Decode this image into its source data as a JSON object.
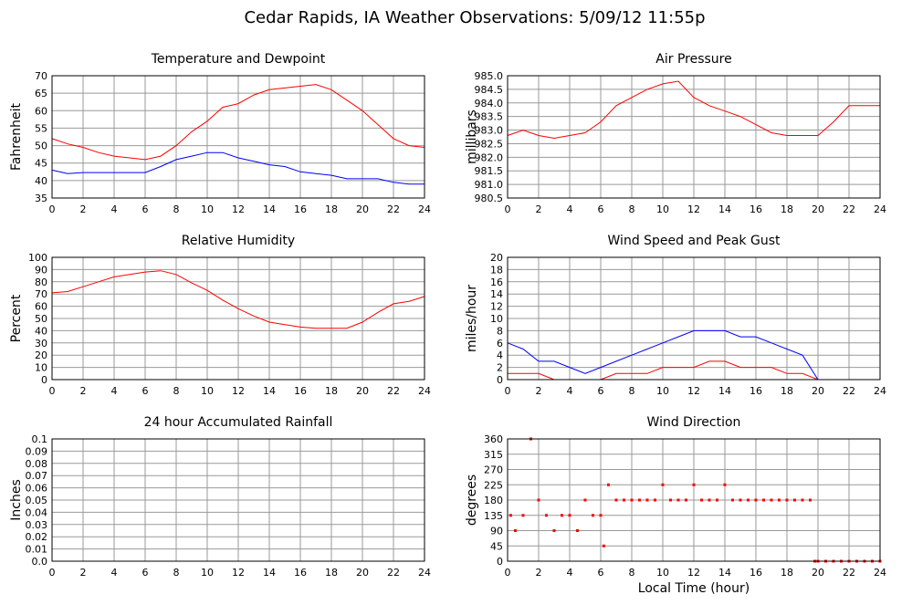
{
  "title": "Cedar Rapids, IA Weather Observations: 5/09/12 11:55p",
  "chart_data": [
    {
      "type": "line",
      "title": "Temperature and Dewpoint",
      "ylabel": "Fahrenheit",
      "x": [
        0,
        1,
        2,
        3,
        4,
        5,
        6,
        7,
        8,
        9,
        10,
        11,
        12,
        13,
        14,
        15,
        16,
        17,
        18,
        19,
        20,
        21,
        22,
        23,
        24
      ],
      "series": [
        {
          "color": "#ff0000",
          "values": [
            52,
            50.5,
            49.5,
            48,
            47,
            46.5,
            46,
            47,
            50,
            54,
            57,
            61,
            62,
            64.5,
            66,
            66.5,
            67,
            67.5,
            66,
            63,
            60,
            56,
            52,
            50,
            49.5
          ]
        },
        {
          "color": "#0000ff",
          "values": [
            43,
            42,
            42.3,
            42.3,
            42.3,
            42.3,
            42.3,
            44,
            46,
            47,
            48,
            48,
            46.5,
            45.5,
            44.5,
            44,
            42.5,
            42,
            41.5,
            40.5,
            40.5,
            40.5,
            39.5,
            39,
            39
          ]
        }
      ],
      "xlim": [
        0,
        24
      ],
      "xticks": [
        0,
        2,
        4,
        6,
        8,
        10,
        12,
        14,
        16,
        18,
        20,
        22,
        24
      ],
      "ylim": [
        35,
        70
      ],
      "yticks": [
        35,
        40,
        45,
        50,
        55,
        60,
        65,
        70
      ],
      "grid": true
    },
    {
      "type": "line",
      "title": "Air Pressure",
      "ylabel": "millibars",
      "x": [
        0,
        1,
        2,
        3,
        4,
        5,
        6,
        7,
        8,
        9,
        10,
        11,
        12,
        13,
        14,
        15,
        16,
        17,
        18,
        19,
        20,
        21,
        22,
        23,
        24
      ],
      "series": [
        {
          "color": "#ff0000",
          "values": [
            982.8,
            983.0,
            982.8,
            982.7,
            982.8,
            982.9,
            983.3,
            983.9,
            984.2,
            984.5,
            984.7,
            984.8,
            984.2,
            983.9,
            983.7,
            983.5,
            983.2,
            982.9,
            982.8,
            982.8,
            982.8,
            983.3,
            983.9,
            983.9,
            983.9
          ]
        }
      ],
      "xlim": [
        0,
        24
      ],
      "xticks": [
        0,
        2,
        4,
        6,
        8,
        10,
        12,
        14,
        16,
        18,
        20,
        22,
        24
      ],
      "ylim": [
        980.5,
        985
      ],
      "yticks": [
        980.5,
        {
          "value": 981,
          "label": "981.0"
        },
        981.5,
        {
          "value": 982,
          "label": "982.0"
        },
        982.5,
        {
          "value": 983,
          "label": "983.0"
        },
        983.5,
        {
          "value": 984,
          "label": "984.0"
        },
        984.5,
        {
          "value": 985,
          "label": "985.0"
        }
      ],
      "grid": true
    },
    {
      "type": "line",
      "title": "Relative Humidity",
      "ylabel": "Percent",
      "x": [
        0,
        1,
        2,
        3,
        4,
        5,
        6,
        7,
        8,
        9,
        10,
        11,
        12,
        13,
        14,
        15,
        16,
        17,
        18,
        19,
        20,
        21,
        22,
        23,
        24
      ],
      "series": [
        {
          "color": "#ff0000",
          "values": [
            71,
            72,
            76,
            80,
            84,
            86,
            88,
            89,
            86,
            79,
            73,
            65,
            58,
            52,
            47,
            45,
            43,
            42,
            42,
            42,
            47,
            55,
            62,
            64,
            68
          ]
        }
      ],
      "xlim": [
        0,
        24
      ],
      "xticks": [
        0,
        2,
        4,
        6,
        8,
        10,
        12,
        14,
        16,
        18,
        20,
        22,
        24
      ],
      "ylim": [
        0,
        100
      ],
      "yticks": [
        0,
        10,
        20,
        30,
        40,
        50,
        60,
        70,
        80,
        90,
        100
      ],
      "grid": true
    },
    {
      "type": "line",
      "title": "Wind Speed and Peak Gust",
      "ylabel": "miles/hour",
      "x": [
        0,
        1,
        2,
        3,
        4,
        5,
        6,
        7,
        8,
        9,
        10,
        11,
        12,
        13,
        14,
        15,
        16,
        17,
        18,
        19,
        20,
        21,
        22,
        23,
        24
      ],
      "series": [
        {
          "color": "#0000ff",
          "values": [
            6,
            5,
            3,
            3,
            2,
            1,
            2,
            3,
            4,
            5,
            6,
            7,
            8,
            8,
            8,
            7,
            7,
            6,
            5,
            4,
            0,
            0,
            0,
            0,
            0
          ]
        },
        {
          "color": "#ff0000",
          "values": [
            1,
            1,
            1,
            0,
            0,
            0,
            0,
            1,
            1,
            1,
            2,
            2,
            2,
            3,
            3,
            2,
            2,
            2,
            1,
            1,
            0,
            0,
            0,
            0,
            0
          ]
        }
      ],
      "xlim": [
        0,
        24
      ],
      "xticks": [
        0,
        2,
        4,
        6,
        8,
        10,
        12,
        14,
        16,
        18,
        20,
        22,
        24
      ],
      "ylim": [
        0,
        20
      ],
      "yticks": [
        0,
        2,
        4,
        6,
        8,
        10,
        12,
        14,
        16,
        18,
        20
      ],
      "grid": true
    },
    {
      "type": "line",
      "title": "24 hour Accumulated Rainfall",
      "ylabel": "Inches",
      "x": [
        0,
        24
      ],
      "series": [
        {
          "color": "#ff0000",
          "values": [
            0,
            0
          ]
        }
      ],
      "xlim": [
        0,
        24
      ],
      "xticks": [
        0,
        2,
        4,
        6,
        8,
        10,
        12,
        14,
        16,
        18,
        20,
        22,
        24
      ],
      "ylim": [
        0,
        0.1
      ],
      "yticks": [
        {
          "value": 0,
          "label": "0.0"
        },
        0.01,
        0.02,
        0.03,
        0.04,
        0.05,
        0.06,
        0.07,
        0.08,
        0.09,
        0.1
      ],
      "grid": true
    },
    {
      "type": "scatter",
      "title": "Wind Direction",
      "ylabel": "degrees",
      "xlabel": "Local Time (hour)",
      "x": [
        0.2,
        0.5,
        1,
        1.5,
        2,
        2.5,
        3,
        3.5,
        4,
        4.5,
        5,
        5.5,
        6,
        6.2,
        6.5,
        7,
        7.5,
        8,
        8.5,
        9,
        9.5,
        10,
        10.5,
        11,
        11.5,
        12,
        12.5,
        13,
        13.5,
        14,
        14.5,
        15,
        15.5,
        16,
        16.5,
        17,
        17.5,
        18,
        18.5,
        19,
        19.5,
        19.8,
        20,
        20.5,
        21,
        21.5,
        22,
        22.5,
        23,
        23.5,
        24
      ],
      "series": [
        {
          "color": "#ff0000",
          "values": [
            135,
            90,
            135,
            360,
            180,
            135,
            90,
            135,
            135,
            90,
            180,
            135,
            135,
            45,
            225,
            180,
            180,
            180,
            180,
            180,
            180,
            225,
            180,
            180,
            180,
            225,
            180,
            180,
            180,
            225,
            180,
            180,
            180,
            180,
            180,
            180,
            180,
            180,
            180,
            180,
            180,
            0,
            0,
            0,
            0,
            0,
            0,
            0,
            0,
            0,
            0
          ]
        }
      ],
      "xlim": [
        0,
        24
      ],
      "xticks": [
        0,
        2,
        4,
        6,
        8,
        10,
        12,
        14,
        16,
        18,
        20,
        22,
        24
      ],
      "ylim": [
        0,
        360
      ],
      "yticks": [
        0,
        45,
        90,
        135,
        180,
        225,
        270,
        315,
        360
      ],
      "grid": true
    }
  ]
}
